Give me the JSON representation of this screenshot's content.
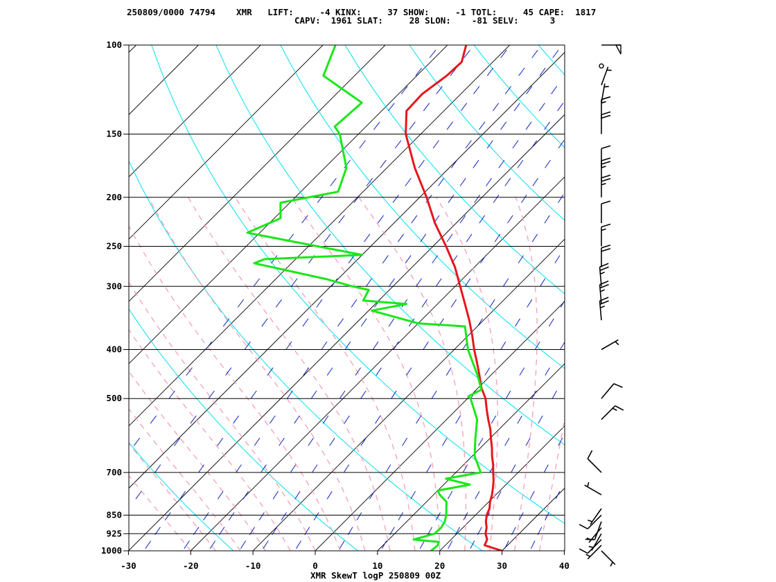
{
  "header": {
    "line1": "250809/0000 74794    XMR   LIFT:     -4 KINX:     37 SHOW:     -1 TOTL:     45 CAPE:  1817",
    "line2": "CAPV:  1961 SLAT:     28 SLON:    -81 SELV:      3"
  },
  "colors": {
    "temperature": "#e8141c",
    "dewpoint": "#18e818",
    "isotherm_skewed": "#000000",
    "dry_adiabat": "#00e0f0",
    "moist_adiabat": "#f4a0b4",
    "mixing_ratio": "#1020c0",
    "isobar": "#000000",
    "wind_barb": "#000000"
  },
  "chart_data": {
    "type": "line",
    "title": "XMR SkewT logP 250809 00Z",
    "x_tick_labels": [
      "-30",
      "-20",
      "-10",
      "0",
      "10",
      "20",
      "30",
      "40"
    ],
    "x_ticks": [
      -30,
      -20,
      -10,
      0,
      10,
      20,
      30,
      40
    ],
    "pressure_tick_labels": [
      "100",
      "150",
      "200",
      "250",
      "300",
      "400",
      "500",
      "700",
      "850",
      "925",
      "1000"
    ],
    "pressure_ticks": [
      100,
      150,
      200,
      250,
      300,
      400,
      500,
      700,
      850,
      925,
      1000
    ],
    "xlim": [
      -30,
      40
    ],
    "ylim_pressure": [
      1000,
      100
    ],
    "y_scale": "log",
    "skew": "45",
    "series": [
      {
        "role": "temperature",
        "points": [
          [
            1000,
            30.0
          ],
          [
            975,
            26.3
          ],
          [
            950,
            25.8
          ],
          [
            925,
            24.6
          ],
          [
            900,
            23.8
          ],
          [
            875,
            22.7
          ],
          [
            850,
            21.8
          ],
          [
            825,
            21.2
          ],
          [
            800,
            20.2
          ],
          [
            775,
            19.4
          ],
          [
            750,
            18.4
          ],
          [
            725,
            17.3
          ],
          [
            700,
            16.0
          ],
          [
            675,
            14.7
          ],
          [
            650,
            13.2
          ],
          [
            625,
            11.8
          ],
          [
            600,
            10.2
          ],
          [
            575,
            8.6
          ],
          [
            550,
            6.7
          ],
          [
            525,
            4.8
          ],
          [
            500,
            2.9
          ],
          [
            475,
            0.4
          ],
          [
            450,
            -1.8
          ],
          [
            425,
            -4.2
          ],
          [
            400,
            -6.8
          ],
          [
            375,
            -9.4
          ],
          [
            350,
            -12.3
          ],
          [
            325,
            -15.6
          ],
          [
            300,
            -19.2
          ],
          [
            275,
            -23.1
          ],
          [
            250,
            -27.9
          ],
          [
            225,
            -33.4
          ],
          [
            200,
            -38.9
          ],
          [
            175,
            -45.5
          ],
          [
            150,
            -52.4
          ],
          [
            135,
            -56.0
          ],
          [
            125,
            -56.2
          ],
          [
            115,
            -55.2
          ],
          [
            108,
            -55.0
          ],
          [
            100,
            -57.0
          ]
        ]
      },
      {
        "role": "dewpoint",
        "points": [
          [
            1000,
            18.6
          ],
          [
            975,
            18.8
          ],
          [
            960,
            18.4
          ],
          [
            950,
            14.0
          ],
          [
            925,
            16.4
          ],
          [
            900,
            16.5
          ],
          [
            875,
            16.1
          ],
          [
            850,
            15.3
          ],
          [
            800,
            13.2
          ],
          [
            775,
            11.0
          ],
          [
            760,
            10.0
          ],
          [
            740,
            14.2
          ],
          [
            720,
            9.4
          ],
          [
            700,
            14.0
          ],
          [
            650,
            10.4
          ],
          [
            600,
            7.7
          ],
          [
            550,
            4.9
          ],
          [
            500,
            0.5
          ],
          [
            495,
            -0.2
          ],
          [
            480,
            0.8
          ],
          [
            450,
            -2.1
          ],
          [
            400,
            -7.8
          ],
          [
            360,
            -12.0
          ],
          [
            355,
            -20.0
          ],
          [
            335,
            -29.5
          ],
          [
            325,
            -25.0
          ],
          [
            320,
            -32.5
          ],
          [
            305,
            -33.3
          ],
          [
            300,
            -36.5
          ],
          [
            290,
            -42.0
          ],
          [
            270,
            -56.0
          ],
          [
            265,
            -55.0
          ],
          [
            260,
            -40.0
          ],
          [
            235,
            -62.0
          ],
          [
            220,
            -59.0
          ],
          [
            205,
            -61.5
          ],
          [
            195,
            -54.0
          ],
          [
            175,
            -56.5
          ],
          [
            150,
            -63.0
          ],
          [
            145,
            -65.0
          ],
          [
            130,
            -64.5
          ],
          [
            115,
            -75.0
          ],
          [
            100,
            -78.0
          ]
        ]
      }
    ],
    "wind_barbs": [
      {
        "p": 1000,
        "direction_deg": 135,
        "speed_kt": 5
      },
      {
        "p": 975,
        "direction_deg": 225,
        "speed_kt": 5
      },
      {
        "p": 950,
        "direction_deg": 225,
        "speed_kt": 10
      },
      {
        "p": 925,
        "direction_deg": 210,
        "speed_kt": 5
      },
      {
        "p": 900,
        "direction_deg": 220,
        "speed_kt": 5
      },
      {
        "p": 875,
        "direction_deg": 200,
        "speed_kt": 10
      },
      {
        "p": 850,
        "direction_deg": 225,
        "speed_kt": 10
      },
      {
        "p": 825,
        "direction_deg": 215,
        "speed_kt": 5
      },
      {
        "p": 775,
        "direction_deg": 300,
        "speed_kt": 5
      },
      {
        "p": 700,
        "direction_deg": 315,
        "speed_kt": 10
      },
      {
        "p": 550,
        "direction_deg": 45,
        "speed_kt": 15
      },
      {
        "p": 500,
        "direction_deg": 40,
        "speed_kt": 10
      },
      {
        "p": 400,
        "direction_deg": 60,
        "speed_kt": 5
      },
      {
        "p": 350,
        "direction_deg": 355,
        "speed_kt": 25
      },
      {
        "p": 325,
        "direction_deg": 355,
        "speed_kt": 25
      },
      {
        "p": 300,
        "direction_deg": 355,
        "speed_kt": 25
      },
      {
        "p": 275,
        "direction_deg": 0,
        "speed_kt": 20
      },
      {
        "p": 250,
        "direction_deg": 0,
        "speed_kt": 15
      },
      {
        "p": 225,
        "direction_deg": 0,
        "speed_kt": 10
      },
      {
        "p": 200,
        "direction_deg": 0,
        "speed_kt": 25
      },
      {
        "p": 185,
        "direction_deg": 0,
        "speed_kt": 25
      },
      {
        "p": 175,
        "direction_deg": 0,
        "speed_kt": 10
      },
      {
        "p": 150,
        "direction_deg": 0,
        "speed_kt": 20
      },
      {
        "p": 140,
        "direction_deg": 0,
        "speed_kt": 15
      },
      {
        "p": 130,
        "direction_deg": 10,
        "speed_kt": 5
      },
      {
        "p": 120,
        "direction_deg": 20,
        "speed_kt": 5
      },
      {
        "p": 110,
        "direction_deg": 0,
        "speed_kt": 0
      },
      {
        "p": 100,
        "direction_deg": 90,
        "speed_kt": 50
      }
    ],
    "grid": true,
    "legend": "none"
  }
}
